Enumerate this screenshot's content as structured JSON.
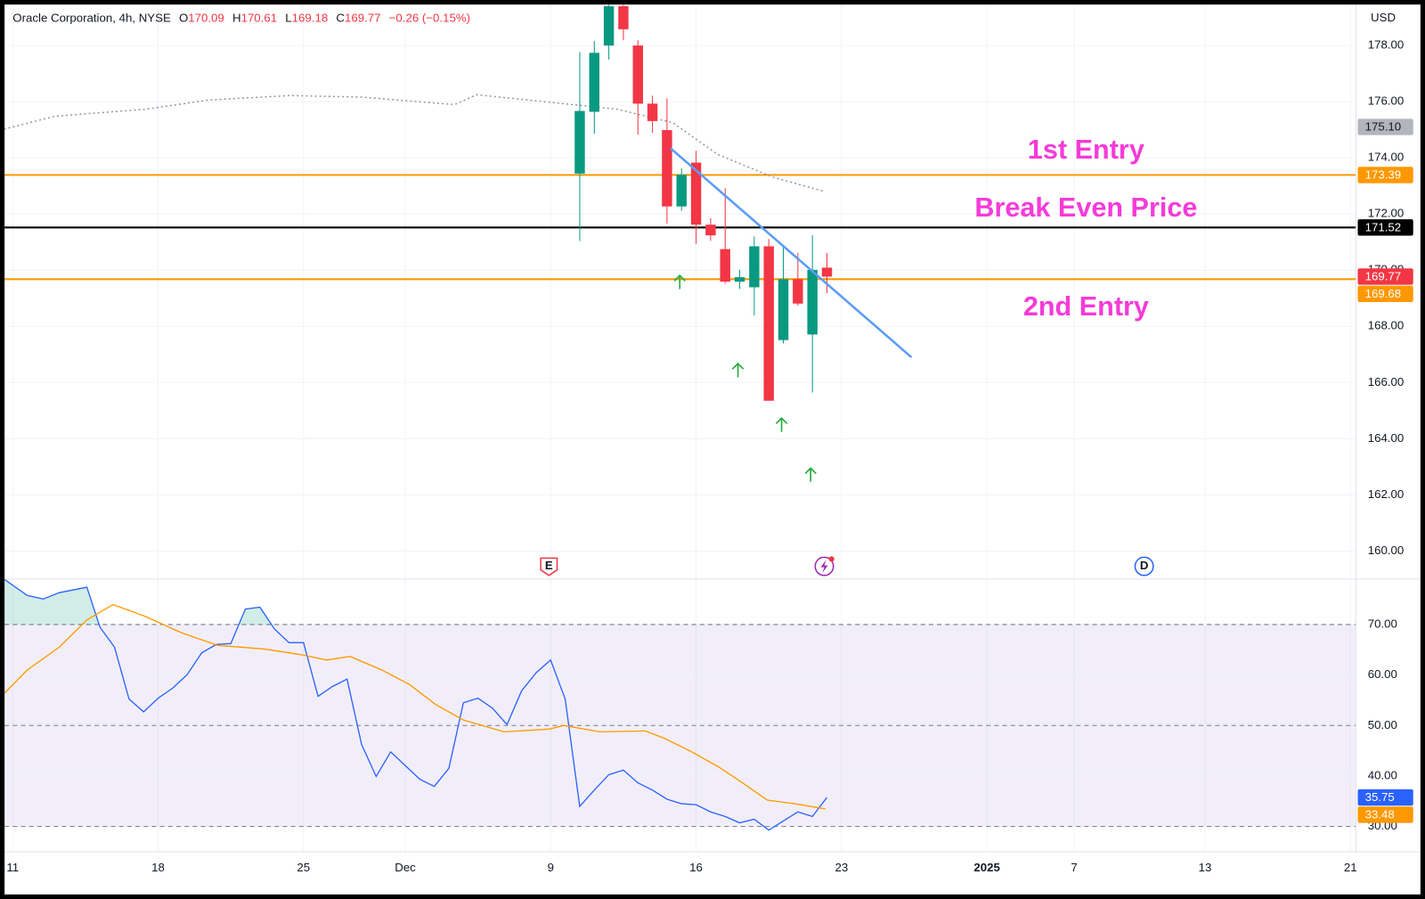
{
  "header": {
    "symbol": "Oracle Corporation, 4h, NYSE",
    "ohlc": [
      {
        "key": "O",
        "value": 170.09
      },
      {
        "key": "H",
        "value": 170.61
      },
      {
        "key": "L",
        "value": 169.18
      },
      {
        "key": "C",
        "value": 169.77
      }
    ],
    "change": "−0.26 (−0.15%)",
    "currency": "USD"
  },
  "events": [
    {
      "label": "E",
      "color": "#f23645"
    },
    {
      "label": "D",
      "color": "#2962ff"
    }
  ],
  "chart_data": [
    {
      "type": "candlestick",
      "xlim": [
        -0.56,
        92.38
      ],
      "ylim": [
        159,
        179.46
      ],
      "xticks": [
        {
          "value": 0,
          "label": "11"
        },
        {
          "value": 10,
          "label": "18"
        },
        {
          "value": 20,
          "label": "25"
        },
        {
          "value": 27,
          "label": "Dec"
        },
        {
          "value": 37,
          "label": "9"
        },
        {
          "value": 47,
          "label": "16"
        },
        {
          "value": 57,
          "label": "23"
        },
        {
          "value": 67,
          "label": "2025"
        },
        {
          "value": 73,
          "label": "7"
        },
        {
          "value": 82,
          "label": "13"
        },
        {
          "value": 92,
          "label": "21"
        }
      ],
      "yticks": [
        {
          "value": 160,
          "label": "160.00"
        },
        {
          "value": 162,
          "label": "162.00"
        },
        {
          "value": 164,
          "label": "164.00"
        },
        {
          "value": 166,
          "label": "166.00"
        },
        {
          "value": 168,
          "label": "168.00"
        },
        {
          "value": 170,
          "label": "170.00"
        },
        {
          "value": 172,
          "label": "172.00"
        },
        {
          "value": 174,
          "label": "174.00"
        },
        {
          "value": 176,
          "label": "176.00"
        },
        {
          "value": 178,
          "label": "178.00"
        }
      ],
      "grid": true,
      "up_color": "#089981",
      "down_color": "#f23645",
      "x": [
        39,
        40,
        41,
        42,
        43,
        44,
        45,
        46,
        47,
        48,
        49,
        50,
        51,
        52,
        53,
        54,
        55,
        56
      ],
      "open": [
        173.44,
        175.64,
        178.0,
        179.4,
        178.0,
        175.93,
        174.99,
        172.27,
        173.83,
        171.62,
        170.75,
        169.59,
        169.39,
        170.85,
        167.51,
        169.68,
        167.71,
        170.09
      ],
      "high": [
        177.77,
        178.16,
        179.45,
        179.45,
        178.19,
        176.22,
        176.12,
        173.63,
        174.25,
        171.85,
        172.92,
        170.01,
        171.2,
        171.11,
        170.85,
        170.62,
        171.24,
        170.61
      ],
      "low": [
        171.04,
        174.86,
        177.5,
        178.19,
        174.83,
        174.89,
        171.66,
        172.11,
        170.94,
        171.04,
        169.52,
        169.33,
        168.39,
        165.35,
        167.39,
        168.74,
        165.64,
        169.18
      ],
      "close": [
        175.67,
        177.74,
        179.4,
        178.58,
        175.93,
        175.31,
        172.27,
        173.4,
        171.62,
        171.24,
        169.59,
        169.75,
        170.85,
        165.35,
        169.68,
        168.81,
        170.01,
        169.77
      ],
      "overlay": {
        "color": "#9598a1",
        "style": "dotted",
        "x": [
          -0.6,
          2.9,
          9.1,
          13.5,
          19.1,
          24.1,
          27.9,
          30.4,
          31.9,
          36.6,
          41.6,
          45.4,
          48.5,
          52.3,
          55.7
        ],
        "values": [
          175.02,
          175.48,
          175.73,
          176.06,
          176.22,
          176.16,
          176.0,
          175.9,
          176.25,
          176.0,
          175.73,
          175.25,
          174.12,
          173.31,
          172.82
        ]
      },
      "trendline": {
        "color": "#5b9cf6",
        "x": [
          45.25,
          61.81
        ],
        "values": [
          174.34,
          166.9
        ]
      },
      "hlines": [
        {
          "value": 173.39,
          "color": "#ff9800",
          "text": "1st Entry"
        },
        {
          "value": 171.52,
          "color": "#000000",
          "text": "Break Even Price"
        },
        {
          "value": 169.68,
          "color": "#ff9800",
          "text": "2nd Entry"
        }
      ],
      "price_labels": [
        {
          "value": 175.1,
          "label": "175.10",
          "color": "#b2b5be",
          "text_color": "#131722"
        },
        {
          "value": 169.77,
          "color": "#f23645"
        }
      ]
    },
    {
      "type": "line",
      "ylim": [
        25,
        79.01
      ],
      "yticks": [
        {
          "value": 30,
          "label": "30.00"
        },
        {
          "value": 40,
          "label": "40.00"
        },
        {
          "value": 50,
          "label": "50.00"
        },
        {
          "value": 60,
          "label": "60.00"
        },
        {
          "value": 70,
          "label": "70.00"
        }
      ],
      "grid": true,
      "band": [
        30,
        70
      ],
      "band_color": "#7e57c2",
      "levels": [
        70,
        50,
        30
      ],
      "overbought_color": "#089981",
      "series": [
        {
          "color": "#2962ff",
          "x": [
            -0.6,
            1,
            2.1,
            3.2,
            5.1,
            6,
            7,
            8,
            9,
            10,
            11,
            12,
            13,
            14,
            15,
            16,
            17,
            18,
            19,
            20,
            21,
            22,
            23,
            24,
            25,
            26,
            27,
            28,
            29,
            30,
            31,
            32,
            33,
            34,
            35,
            36,
            37,
            38,
            39,
            40,
            41,
            42,
            43,
            44,
            45,
            46,
            47,
            48,
            49,
            50,
            51,
            52,
            53,
            54,
            55,
            56
          ],
          "values": [
            79.0,
            75.77,
            75.05,
            76.31,
            77.39,
            69.46,
            65.5,
            55.23,
            52.7,
            55.41,
            57.39,
            60.09,
            64.41,
            66.04,
            66.22,
            73.06,
            73.42,
            69.1,
            66.4,
            66.4,
            55.77,
            57.75,
            59.19,
            46.22,
            39.91,
            44.77,
            42.07,
            39.37,
            37.93,
            41.53,
            54.5,
            55.41,
            53.42,
            50.18,
            56.85,
            60.45,
            62.97,
            55.23,
            33.96,
            37.21,
            40.27,
            41.17,
            38.65,
            37.21,
            35.41,
            34.5,
            34.32,
            32.88,
            31.98,
            30.72,
            31.44,
            29.28,
            31.08,
            32.88,
            31.98,
            35.75
          ]
        },
        {
          "color": "#ff9800",
          "x": [
            -0.6,
            1,
            3.2,
            5.1,
            6.9,
            9.1,
            11.6,
            14.1,
            17.3,
            19.8,
            21.6,
            23.2,
            25.4,
            27.3,
            29.1,
            31,
            33.8,
            36.9,
            37.9,
            40.4,
            43.5,
            44.8,
            46.6,
            48.5,
            50.1,
            51.9,
            53.8,
            55.9
          ],
          "values": [
            56.31,
            60.99,
            65.5,
            70.9,
            73.96,
            71.62,
            68.38,
            65.86,
            65.14,
            64.05,
            62.97,
            63.69,
            60.99,
            58.11,
            54.14,
            51.08,
            48.74,
            49.28,
            50.0,
            48.74,
            48.92,
            47.48,
            44.95,
            41.89,
            38.83,
            35.23,
            34.5,
            33.48
          ]
        }
      ]
    }
  ]
}
